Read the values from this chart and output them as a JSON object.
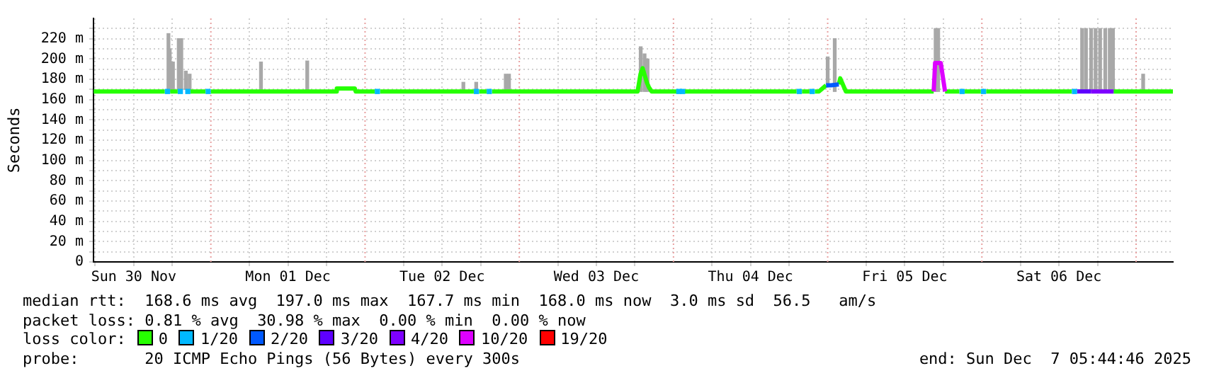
{
  "chart_data": {
    "type": "line",
    "ylabel": "Seconds",
    "legend_title": "loss color:",
    "legend": "bottom",
    "grid": true,
    "xlim": [
      "2025-11-30T05:44",
      "2025-12-07T05:44"
    ],
    "ylim": [
      0,
      240
    ],
    "xticks": [
      {
        "value": "2025-11-30T06:00",
        "label": null
      },
      {
        "value": "2025-11-30T12:00",
        "label": "Sun 30 Nov"
      },
      {
        "value": "2025-11-30T18:00",
        "label": null
      },
      {
        "value": "2025-12-01T06:00",
        "label": null
      },
      {
        "value": "2025-12-01T12:00",
        "label": "Mon 01 Dec"
      },
      {
        "value": "2025-12-01T18:00",
        "label": null
      },
      {
        "value": "2025-12-02T06:00",
        "label": null
      },
      {
        "value": "2025-12-02T12:00",
        "label": "Tue 02 Dec"
      },
      {
        "value": "2025-12-02T18:00",
        "label": null
      },
      {
        "value": "2025-12-03T06:00",
        "label": null
      },
      {
        "value": "2025-12-03T12:00",
        "label": "Wed 03 Dec"
      },
      {
        "value": "2025-12-03T18:00",
        "label": null
      },
      {
        "value": "2025-12-04T06:00",
        "label": null
      },
      {
        "value": "2025-12-04T12:00",
        "label": "Thu 04 Dec"
      },
      {
        "value": "2025-12-04T18:00",
        "label": null
      },
      {
        "value": "2025-12-05T06:00",
        "label": null
      },
      {
        "value": "2025-12-05T12:00",
        "label": "Fri 05 Dec"
      },
      {
        "value": "2025-12-05T18:00",
        "label": null
      },
      {
        "value": "2025-12-06T06:00",
        "label": null
      },
      {
        "value": "2025-12-06T12:00",
        "label": "Sat 06 Dec"
      },
      {
        "value": "2025-12-06T18:00",
        "label": null
      }
    ],
    "yticks": [
      0,
      {
        "value": 10,
        "label": null
      },
      {
        "value": 20,
        "label": "20 m"
      },
      {
        "value": 30,
        "label": null
      },
      {
        "value": 40,
        "label": "40 m"
      },
      {
        "value": 50,
        "label": null
      },
      {
        "value": 60,
        "label": "60 m"
      },
      {
        "value": 70,
        "label": null
      },
      {
        "value": 80,
        "label": "80 m"
      },
      {
        "value": 90,
        "label": null
      },
      {
        "value": 100,
        "label": "100 m"
      },
      {
        "value": 110,
        "label": null
      },
      {
        "value": 120,
        "label": "120 m"
      },
      {
        "value": 130,
        "label": null
      },
      {
        "value": 140,
        "label": "140 m"
      },
      {
        "value": 150,
        "label": null
      },
      {
        "value": 160,
        "label": "160 m"
      },
      {
        "value": 170,
        "label": null
      },
      {
        "value": 180,
        "label": "180 m"
      },
      {
        "value": 190,
        "label": null
      },
      {
        "value": 200,
        "label": "200 m"
      },
      {
        "value": 210,
        "label": null
      },
      {
        "value": 220,
        "label": "220 m"
      },
      {
        "value": 230,
        "label": null
      }
    ],
    "ref_lines": [
      {
        "axis": "x",
        "value": "2025-12-01T00:00",
        "label": null,
        "color": "#e8a0a0",
        "line_style": "dotted"
      },
      {
        "axis": "x",
        "value": "2025-12-02T00:00",
        "label": null,
        "color": "#e8a0a0",
        "line_style": "dotted"
      },
      {
        "axis": "x",
        "value": "2025-12-03T00:00",
        "label": null,
        "color": "#e8a0a0",
        "line_style": "dotted"
      },
      {
        "axis": "x",
        "value": "2025-12-04T00:00",
        "label": null,
        "color": "#e8a0a0",
        "line_style": "dotted"
      },
      {
        "axis": "x",
        "value": "2025-12-05T00:00",
        "label": null,
        "color": "#e8a0a0",
        "line_style": "dotted"
      },
      {
        "axis": "x",
        "value": "2025-12-06T00:00",
        "label": null,
        "color": "#e8a0a0",
        "line_style": "dotted"
      },
      {
        "axis": "x",
        "value": "2025-12-07T00:00",
        "label": null,
        "color": "#e8a0a0",
        "line_style": "dotted"
      }
    ],
    "series": [
      {
        "type": "bar",
        "color": "#a8a8a8",
        "x": [
          "2025-11-30T17:24",
          "2025-11-30T17:36",
          "2025-11-30T18:06",
          "2025-11-30T19:00",
          "2025-11-30T19:24",
          "2025-11-30T20:06",
          "2025-11-30T20:42",
          "2025-12-01T07:48",
          "2025-12-01T15:00",
          "2025-12-02T15:18",
          "2025-12-02T17:18",
          "2025-12-02T21:54",
          "2025-12-02T22:24",
          "2025-12-03T18:54",
          "2025-12-03T19:30",
          "2025-12-03T19:58",
          "2025-12-05T00:00",
          "2025-12-05T01:06",
          "2025-12-05T16:48",
          "2025-12-05T17:12",
          "2025-12-06T15:36",
          "2025-12-06T16:12",
          "2025-12-06T17:00",
          "2025-12-06T17:42",
          "2025-12-06T18:24",
          "2025-12-06T19:12",
          "2025-12-06T19:54",
          "2025-12-06T20:24",
          "2025-12-07T01:06"
        ],
        "base": [
          168,
          168,
          170,
          170,
          170,
          170,
          170,
          168,
          168,
          168,
          168,
          168,
          168,
          168,
          168,
          168,
          175,
          168,
          168,
          168,
          168,
          168,
          168,
          168,
          168,
          168,
          168,
          168,
          168
        ],
        "values": [
          57,
          42,
          27,
          50,
          50,
          18,
          15,
          29,
          30,
          9,
          9,
          17,
          17,
          44,
          37,
          32,
          27,
          52,
          62,
          62,
          62,
          62,
          62,
          62,
          62,
          62,
          62,
          62,
          17
        ]
      },
      {
        "name": "0",
        "color": "#26ff00",
        "x": [
          "2025-11-30T05:45",
          "2025-11-30T16:50",
          "2025-11-30T17:00",
          "2025-11-30T17:40",
          "2025-11-30T18:50",
          "2025-11-30T19:00",
          "2025-11-30T20:50",
          "2025-11-30T23:10",
          "2025-11-30T23:30",
          "2025-12-01T00:00",
          "2025-12-01T19:27",
          "2025-12-01T19:36",
          "2025-12-01T22:24",
          "2025-12-01T22:32",
          "2025-12-02T01:30",
          "2025-12-02T01:50",
          "2025-12-02T02:20",
          "2025-12-02T16:55",
          "2025-12-02T17:10",
          "2025-12-02T17:45",
          "2025-12-02T18:55",
          "2025-12-02T19:10",
          "2025-12-02T19:45",
          "2025-12-03T18:25",
          "2025-12-03T18:52",
          "2025-12-03T19:12",
          "2025-12-03T19:31",
          "2025-12-03T19:51",
          "2025-12-03T20:11",
          "2025-12-03T20:37",
          "2025-12-04T00:35",
          "2025-12-04T01:06",
          "2025-12-04T01:41",
          "2025-12-04T19:10",
          "2025-12-04T19:30",
          "2025-12-04T20:00",
          "2025-12-04T21:10",
          "2025-12-04T21:30",
          "2025-12-04T22:00",
          "2025-12-04T22:38",
          "2025-12-04T23:45",
          "2025-12-05T00:54",
          "2025-12-05T01:44",
          "2025-12-05T01:57",
          "2025-12-05T02:50",
          "2025-12-05T16:30",
          "2025-12-05T17:24",
          "2025-12-05T18:16",
          "2025-12-05T20:30",
          "2025-12-05T20:50",
          "2025-12-05T21:20",
          "2025-12-05T23:50",
          "2025-12-06T00:10",
          "2025-12-06T00:40",
          "2025-12-06T14:00",
          "2025-12-06T17:00",
          "2025-12-06T20:30",
          "2025-12-07T05:44"
        ],
        "values": [
          168,
          168,
          null,
          168,
          168,
          null,
          168,
          168,
          null,
          168,
          168,
          171,
          171,
          168,
          168,
          null,
          168,
          168,
          null,
          168,
          168,
          null,
          168,
          168,
          185,
          191,
          184,
          177,
          172,
          168,
          168,
          null,
          168,
          168,
          null,
          168,
          168,
          null,
          168,
          168,
          174,
          null,
          175,
          181,
          168,
          168,
          null,
          168,
          168,
          null,
          168,
          168,
          null,
          168,
          168,
          null,
          168,
          168
        ]
      },
      {
        "name": "1/20",
        "type": "scatter",
        "marker": "square",
        "color": "#00b8ff",
        "x": [
          "2025-11-30T17:15",
          "2025-11-30T19:15",
          "2025-11-30T20:25",
          "2025-11-30T23:35",
          "2025-12-02T01:55",
          "2025-12-02T17:20",
          "2025-12-02T19:20",
          "2025-12-04T00:50",
          "2025-12-04T01:25",
          "2025-12-04T19:35",
          "2025-12-04T21:35",
          "2025-12-05T20:55",
          "2025-12-06T00:15",
          "2025-12-06T14:25"
        ],
        "values": [
          168,
          168,
          168,
          168,
          168,
          168,
          168,
          168,
          168,
          168,
          168,
          168,
          168,
          168
        ]
      },
      {
        "name": "2/20",
        "color": "#0059ff",
        "x": [
          "2025-12-04T23:45",
          "2025-12-05T00:30",
          "2025-12-05T01:44"
        ],
        "values": [
          174,
          174,
          175
        ]
      },
      {
        "name": "3/20",
        "color": "#5e00ff",
        "x": [
          "2025-12-06T14:50",
          "2025-12-06T16:59"
        ],
        "values": [
          168,
          168
        ]
      },
      {
        "name": "4/20",
        "color": "#7e00ff",
        "x": [
          "2025-12-06T16:59",
          "2025-12-06T20:30"
        ],
        "values": [
          168,
          168
        ]
      },
      {
        "name": "10/20",
        "color": "#dd00ff",
        "x": [
          "2025-12-05T16:30",
          "2025-12-05T16:43",
          "2025-12-05T17:36",
          "2025-12-05T18:16"
        ],
        "values": [
          168,
          196,
          196,
          168
        ]
      },
      {
        "name": "19/20",
        "color": "#ff0000"
      }
    ],
    "annotations": [
      "median rtt:  168.6 ms avg  197.0 ms max  167.7 ms min  168.0 ms now  3.0 ms sd  56.5   am/s",
      "packet loss: 0.81 % avg  30.98 % max  0.00 % min  0.00 % now",
      "probe:       20 ICMP Echo Pings (56 Bytes) every 300s",
      "end: Sun Dec  7 05:44:46 2025"
    ]
  }
}
